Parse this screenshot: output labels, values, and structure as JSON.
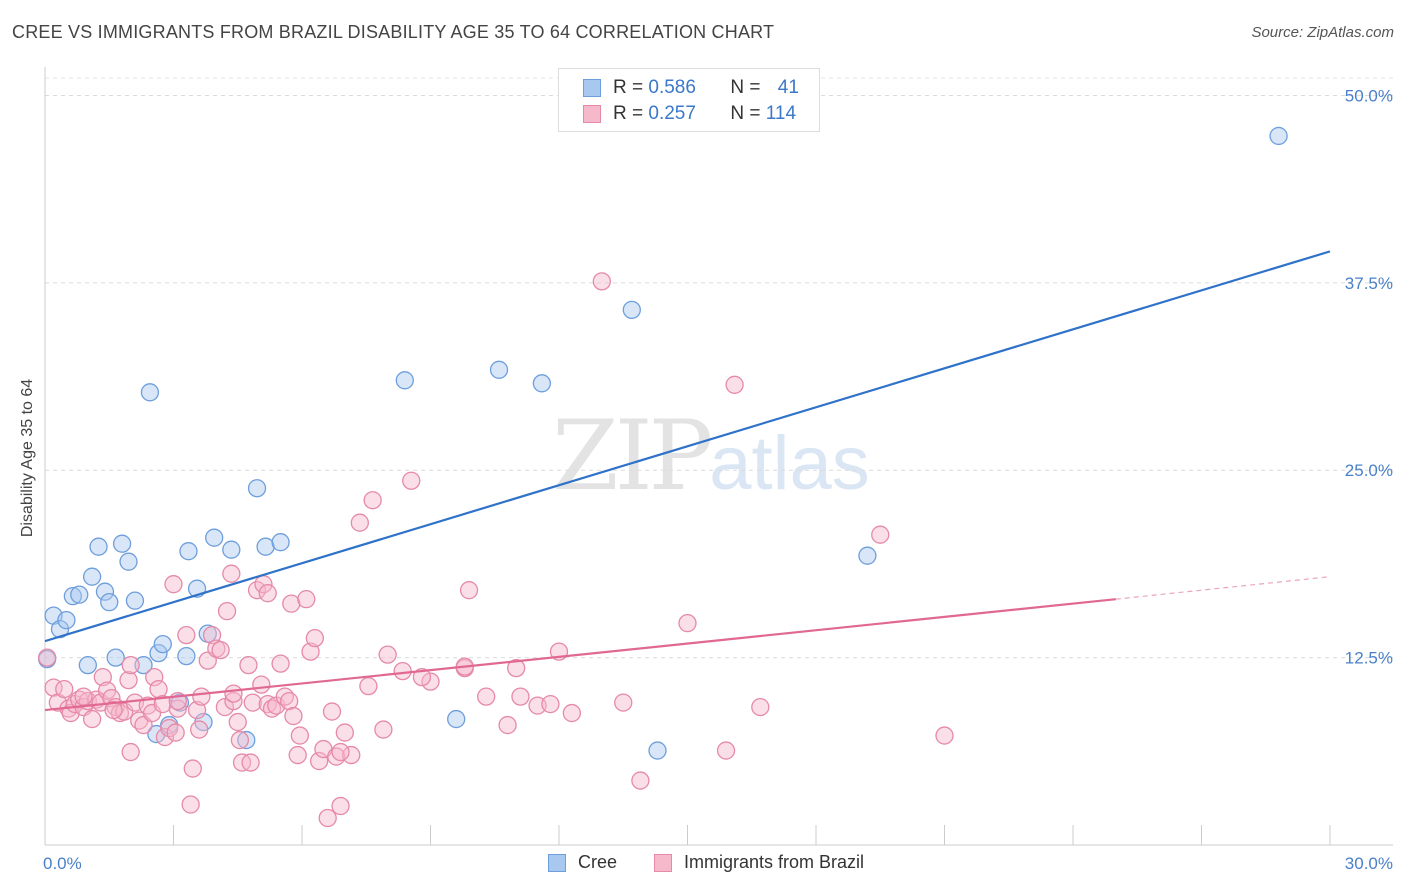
{
  "title": "CREE VS IMMIGRANTS FROM BRAZIL DISABILITY AGE 35 TO 64 CORRELATION CHART",
  "source": "Source: ZipAtlas.com",
  "watermark": {
    "zip": "ZIP",
    "atlas": "atlas"
  },
  "legend_top": [
    {
      "r_label": "R = ",
      "r_value": "0.586",
      "n_label": "N = ",
      "n_value": "41",
      "color": "#a9c8f0",
      "border": "#6e9fdc"
    },
    {
      "r_label": "R = ",
      "r_value": "0.257",
      "n_label": "N = ",
      "n_value": "114",
      "color": "#f6b8cb",
      "border": "#e58aa8"
    }
  ],
  "legend_bottom": [
    {
      "label": "Cree",
      "color": "#a9c8f0",
      "border": "#6e9fdc"
    },
    {
      "label": "Immigrants from Brazil",
      "color": "#f6b8cb",
      "border": "#e58aa8"
    }
  ],
  "chart_data": {
    "type": "scatter",
    "title": "CREE VS IMMIGRANTS FROM BRAZIL DISABILITY AGE 35 TO 64 CORRELATION CHART",
    "xlabel": "",
    "ylabel": "Disability Age 35 to 64",
    "xlim": [
      0,
      30
    ],
    "ylim": [
      0,
      51.5
    ],
    "x_tick_labels": [
      "0.0%",
      "30.0%"
    ],
    "y_ticks": [
      12.5,
      25.0,
      37.5,
      50.0
    ],
    "y_tick_labels": [
      "12.5%",
      "25.0%",
      "37.5%",
      "50.0%"
    ],
    "grid": true,
    "legend": "top-center",
    "series": [
      {
        "name": "Cree",
        "color": "#6e9fdc",
        "fill": "#a9c8f0",
        "trend": {
          "x0": 0,
          "y0": 13.6,
          "x1": 30,
          "y1": 39.6,
          "color": "#2f72c9"
        },
        "points": [
          [
            0.2,
            15.3
          ],
          [
            0.35,
            14.4
          ],
          [
            0.5,
            15.0
          ],
          [
            0.65,
            16.6
          ],
          [
            0.8,
            16.7
          ],
          [
            1.0,
            12.0
          ],
          [
            1.1,
            17.9
          ],
          [
            1.25,
            19.9
          ],
          [
            1.4,
            16.9
          ],
          [
            1.5,
            16.2
          ],
          [
            1.65,
            12.5
          ],
          [
            1.8,
            20.1
          ],
          [
            1.95,
            18.9
          ],
          [
            2.1,
            16.3
          ],
          [
            2.3,
            12.0
          ],
          [
            2.45,
            30.2
          ],
          [
            2.6,
            7.4
          ],
          [
            2.65,
            12.8
          ],
          [
            2.75,
            13.4
          ],
          [
            2.9,
            8.0
          ],
          [
            3.15,
            9.5
          ],
          [
            3.3,
            12.6
          ],
          [
            3.35,
            19.6
          ],
          [
            3.55,
            17.1
          ],
          [
            3.7,
            8.2
          ],
          [
            3.8,
            14.1
          ],
          [
            3.95,
            20.5
          ],
          [
            4.35,
            19.7
          ],
          [
            4.7,
            7.0
          ],
          [
            4.95,
            23.8
          ],
          [
            5.15,
            19.9
          ],
          [
            5.5,
            20.2
          ],
          [
            8.4,
            31.0
          ],
          [
            9.6,
            8.4
          ],
          [
            10.6,
            31.7
          ],
          [
            11.6,
            30.8
          ],
          [
            13.7,
            35.7
          ],
          [
            14.3,
            6.3
          ],
          [
            19.2,
            19.3
          ],
          [
            28.8,
            47.3
          ],
          [
            0.05,
            12.4
          ]
        ]
      },
      {
        "name": "Immigrants from Brazil",
        "color": "#e58aa8",
        "fill": "#f6b8cb",
        "trend": {
          "x0": 0,
          "y0": 9.0,
          "x1": 25,
          "y1": 16.4,
          "color": "#e06892",
          "dash_to": {
            "x": 30,
            "y": 17.9
          }
        },
        "points": [
          [
            0.05,
            12.5
          ],
          [
            0.2,
            10.5
          ],
          [
            0.3,
            9.5
          ],
          [
            0.45,
            10.4
          ],
          [
            0.55,
            9.1
          ],
          [
            0.6,
            8.8
          ],
          [
            0.7,
            9.4
          ],
          [
            0.8,
            9.7
          ],
          [
            0.9,
            9.2
          ],
          [
            1.0,
            9.6
          ],
          [
            1.1,
            8.4
          ],
          [
            1.2,
            9.7
          ],
          [
            1.3,
            9.5
          ],
          [
            1.35,
            11.2
          ],
          [
            1.45,
            10.3
          ],
          [
            1.55,
            9.8
          ],
          [
            1.65,
            9.2
          ],
          [
            1.75,
            8.8
          ],
          [
            1.85,
            8.9
          ],
          [
            1.95,
            11.0
          ],
          [
            2.0,
            6.2
          ],
          [
            2.1,
            9.5
          ],
          [
            2.2,
            8.3
          ],
          [
            2.3,
            8.0
          ],
          [
            2.4,
            9.3
          ],
          [
            2.5,
            8.8
          ],
          [
            2.55,
            11.2
          ],
          [
            2.65,
            10.4
          ],
          [
            2.75,
            9.4
          ],
          [
            2.8,
            7.2
          ],
          [
            2.9,
            7.8
          ],
          [
            3.0,
            17.4
          ],
          [
            3.05,
            7.5
          ],
          [
            3.1,
            9.1
          ],
          [
            3.3,
            14.0
          ],
          [
            3.4,
            2.7
          ],
          [
            3.45,
            5.1
          ],
          [
            3.55,
            9.0
          ],
          [
            3.6,
            7.7
          ],
          [
            3.65,
            9.9
          ],
          [
            3.8,
            12.3
          ],
          [
            3.9,
            14.0
          ],
          [
            4.0,
            13.1
          ],
          [
            4.1,
            13.0
          ],
          [
            4.2,
            9.2
          ],
          [
            4.25,
            15.6
          ],
          [
            4.35,
            18.1
          ],
          [
            4.4,
            9.6
          ],
          [
            4.5,
            8.2
          ],
          [
            4.55,
            7.0
          ],
          [
            4.6,
            5.5
          ],
          [
            4.75,
            12.0
          ],
          [
            4.8,
            5.5
          ],
          [
            4.85,
            9.5
          ],
          [
            4.95,
            17.0
          ],
          [
            5.05,
            10.7
          ],
          [
            5.1,
            17.4
          ],
          [
            5.2,
            9.4
          ],
          [
            5.3,
            9.1
          ],
          [
            5.4,
            9.3
          ],
          [
            5.5,
            12.1
          ],
          [
            5.6,
            9.9
          ],
          [
            5.7,
            9.6
          ],
          [
            5.75,
            16.1
          ],
          [
            5.8,
            8.6
          ],
          [
            5.9,
            6.0
          ],
          [
            5.95,
            7.3
          ],
          [
            6.1,
            16.4
          ],
          [
            6.2,
            12.9
          ],
          [
            6.3,
            13.8
          ],
          [
            6.4,
            5.6
          ],
          [
            6.5,
            6.4
          ],
          [
            6.6,
            1.8
          ],
          [
            6.7,
            8.9
          ],
          [
            6.8,
            5.9
          ],
          [
            6.9,
            2.6
          ],
          [
            7.0,
            7.5
          ],
          [
            7.15,
            6.0
          ],
          [
            7.35,
            21.5
          ],
          [
            7.55,
            10.6
          ],
          [
            7.65,
            23.0
          ],
          [
            7.9,
            7.7
          ],
          [
            8.0,
            12.7
          ],
          [
            8.35,
            11.6
          ],
          [
            8.55,
            24.3
          ],
          [
            9.0,
            10.9
          ],
          [
            9.8,
            11.8
          ],
          [
            9.9,
            17.0
          ],
          [
            10.3,
            9.9
          ],
          [
            10.8,
            8.0
          ],
          [
            11.1,
            9.9
          ],
          [
            11.5,
            9.3
          ],
          [
            11.8,
            9.4
          ],
          [
            12.0,
            12.9
          ],
          [
            12.3,
            8.8
          ],
          [
            13.0,
            37.6
          ],
          [
            13.5,
            9.5
          ],
          [
            13.9,
            4.3
          ],
          [
            15.0,
            14.8
          ],
          [
            15.9,
            6.3
          ],
          [
            16.1,
            30.7
          ],
          [
            16.7,
            9.2
          ],
          [
            19.5,
            20.7
          ],
          [
            21.0,
            7.3
          ],
          [
            9.8,
            11.9
          ],
          [
            6.9,
            6.2
          ],
          [
            5.2,
            16.8
          ],
          [
            3.1,
            9.6
          ],
          [
            2.0,
            12.0
          ],
          [
            1.6,
            9.0
          ],
          [
            0.9,
            9.9
          ],
          [
            11.0,
            11.8
          ],
          [
            4.4,
            10.1
          ],
          [
            8.8,
            11.2
          ]
        ]
      }
    ]
  }
}
